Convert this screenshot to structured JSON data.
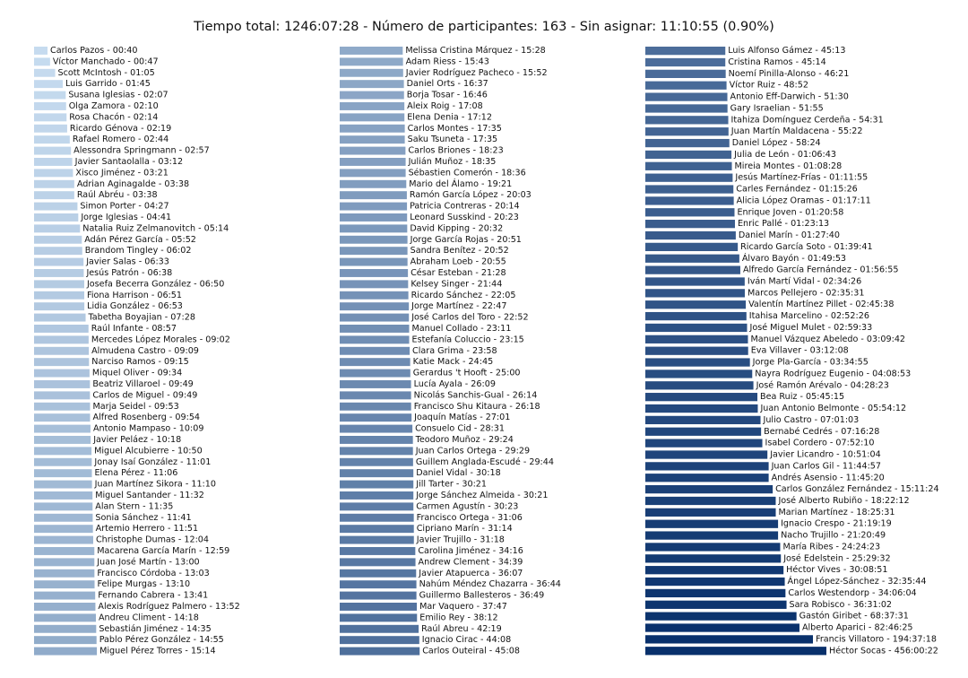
{
  "chart_data": {
    "type": "bar",
    "orientation": "horizontal",
    "title": "Tiempo total: 1246:07:28 - Número de participantes: 163 - Sin asignar: 11:10:55 (0.90%)",
    "value_unit": "seconds",
    "color_scale": [
      "#c6dbef",
      "#08306b"
    ],
    "columns": [
      {
        "name": "",
        "bars": [
          {
            "label": "Carlos Pazos - 00:40",
            "seconds": 40
          },
          {
            "label": "Víctor Manchado - 00:47",
            "seconds": 47
          },
          {
            "label": "Scott McIntosh - 01:05",
            "seconds": 65
          },
          {
            "label": "Luis Garrido - 01:45",
            "seconds": 105
          },
          {
            "label": "Susana Iglesias - 02:07",
            "seconds": 127
          },
          {
            "label": "Olga Zamora - 02:10",
            "seconds": 130
          },
          {
            "label": "Rosa Chacón - 02:14",
            "seconds": 134
          },
          {
            "label": "Ricardo Génova - 02:19",
            "seconds": 139
          },
          {
            "label": "Rafael Romero - 02:44",
            "seconds": 164
          },
          {
            "label": "Alessondra Springmann - 02:57",
            "seconds": 177
          },
          {
            "label": "Javier Santaolalla - 03:12",
            "seconds": 192
          },
          {
            "label": "Xisco Jiménez - 03:21",
            "seconds": 201
          },
          {
            "label": "Adrian Aginagalde - 03:38",
            "seconds": 218
          },
          {
            "label": "Raúl Abréu - 03:38",
            "seconds": 218
          },
          {
            "label": "Simon Porter - 04:27",
            "seconds": 267
          },
          {
            "label": "Jorge Iglesias - 04:41",
            "seconds": 281
          },
          {
            "label": "Natalia Ruiz Zelmanovitch - 05:14",
            "seconds": 314
          },
          {
            "label": "Adán Pérez García - 05:52",
            "seconds": 352
          },
          {
            "label": "Brandom Tingley - 06:02",
            "seconds": 362
          },
          {
            "label": "Javier Salas - 06:33",
            "seconds": 393
          },
          {
            "label": "Jesús Patrón - 06:38",
            "seconds": 398
          },
          {
            "label": "Josefa Becerra González - 06:50",
            "seconds": 410
          },
          {
            "label": "Fiona Harrison - 06:51",
            "seconds": 411
          },
          {
            "label": "Lidia González - 06:53",
            "seconds": 413
          },
          {
            "label": "Tabetha Boyajian - 07:28",
            "seconds": 448
          },
          {
            "label": "Raúl Infante - 08:57",
            "seconds": 537
          },
          {
            "label": "Mercedes López Morales - 09:02",
            "seconds": 542
          },
          {
            "label": "Almudena Castro - 09:09",
            "seconds": 549
          },
          {
            "label": "Narciso Ramos - 09:15",
            "seconds": 555
          },
          {
            "label": "Miquel Oliver - 09:34",
            "seconds": 574
          },
          {
            "label": "Beatriz Villaroel - 09:49",
            "seconds": 589
          },
          {
            "label": "Carlos de Miguel - 09:49",
            "seconds": 589
          },
          {
            "label": "Marja Seidel - 09:53",
            "seconds": 593
          },
          {
            "label": "Alfred Rosenberg - 09:54",
            "seconds": 594
          },
          {
            "label": "Antonio Mampaso - 10:09",
            "seconds": 609
          },
          {
            "label": "Javier Peláez - 10:18",
            "seconds": 618
          },
          {
            "label": "Miguel Alcubierre - 10:50",
            "seconds": 650
          },
          {
            "label": "Jonay Isaí González - 11:01",
            "seconds": 661
          },
          {
            "label": "Elena Pérez - 11:06",
            "seconds": 666
          },
          {
            "label": "Juan Martínez Sikora - 11:10",
            "seconds": 670
          },
          {
            "label": "Miguel Santander - 11:32",
            "seconds": 692
          },
          {
            "label": "Alan Stern - 11:35",
            "seconds": 695
          },
          {
            "label": "Sonia Sánchez - 11:41",
            "seconds": 701
          },
          {
            "label": "Artemio Herrero - 11:51",
            "seconds": 711
          },
          {
            "label": "Christophe Dumas - 12:04",
            "seconds": 724
          },
          {
            "label": "Macarena García Marín - 12:59",
            "seconds": 779
          },
          {
            "label": "Juan José Martín - 13:00",
            "seconds": 780
          },
          {
            "label": "Francisco Córdoba - 13:03",
            "seconds": 783
          },
          {
            "label": "Felipe Murgas - 13:10",
            "seconds": 790
          },
          {
            "label": "Fernando Cabrera - 13:41",
            "seconds": 821
          },
          {
            "label": "Alexis Rodríguez Palmero - 13:52",
            "seconds": 832
          },
          {
            "label": "Andreu Climent - 14:18",
            "seconds": 858
          },
          {
            "label": "Sebastián Jiménez - 14:35",
            "seconds": 875
          },
          {
            "label": "Pablo Pérez González - 14:55",
            "seconds": 895
          },
          {
            "label": "Miguel Pérez Torres - 15:14",
            "seconds": 914
          }
        ]
      },
      {
        "name": "",
        "bars": [
          {
            "label": "Melissa Cristina Márquez - 15:28",
            "seconds": 928
          },
          {
            "label": "Adam Riess - 15:43",
            "seconds": 943
          },
          {
            "label": "Javier Rodríguez Pacheco - 15:52",
            "seconds": 952
          },
          {
            "label": "Daniel Orts - 16:37",
            "seconds": 997
          },
          {
            "label": "Borja Tosar - 16:46",
            "seconds": 1006
          },
          {
            "label": "Aleix Roig - 17:08",
            "seconds": 1028
          },
          {
            "label": "Elena Denia - 17:12",
            "seconds": 1032
          },
          {
            "label": "Carlos Montes - 17:35",
            "seconds": 1055
          },
          {
            "label": "Saku Tsuneta - 17:35",
            "seconds": 1055
          },
          {
            "label": "Carlos Briones - 18:23",
            "seconds": 1103
          },
          {
            "label": "Julián Muñoz - 18:35",
            "seconds": 1115
          },
          {
            "label": "Sébastien Comerón - 18:36",
            "seconds": 1116
          },
          {
            "label": "Mario del Álamo - 19:21",
            "seconds": 1161
          },
          {
            "label": "Ramón García López - 20:03",
            "seconds": 1203
          },
          {
            "label": "Patricia Contreras - 20:14",
            "seconds": 1214
          },
          {
            "label": "Leonard Susskind - 20:23",
            "seconds": 1223
          },
          {
            "label": "David Kipping - 20:32",
            "seconds": 1232
          },
          {
            "label": "Jorge García Rojas - 20:51",
            "seconds": 1251
          },
          {
            "label": "Sandra Benítez - 20:52",
            "seconds": 1252
          },
          {
            "label": "Abraham Loeb - 20:55",
            "seconds": 1255
          },
          {
            "label": "César Esteban - 21:28",
            "seconds": 1288
          },
          {
            "label": "Kelsey Singer - 21:44",
            "seconds": 1304
          },
          {
            "label": "Ricardo Sánchez - 22:05",
            "seconds": 1325
          },
          {
            "label": "Jorge Martínez - 22:47",
            "seconds": 1367
          },
          {
            "label": "José Carlos del Toro - 22:52",
            "seconds": 1372
          },
          {
            "label": "Manuel Collado - 23:11",
            "seconds": 1391
          },
          {
            "label": "Estefanía Coluccio - 23:15",
            "seconds": 1395
          },
          {
            "label": "Clara Grima - 23:58",
            "seconds": 1438
          },
          {
            "label": "Katie Mack - 24:45",
            "seconds": 1485
          },
          {
            "label": "Gerardus 't Hooft - 25:00",
            "seconds": 1500
          },
          {
            "label": "Lucía Ayala - 26:09",
            "seconds": 1569
          },
          {
            "label": "Nicolás Sanchis-Gual - 26:14",
            "seconds": 1574
          },
          {
            "label": "Francisco Shu Kitaura - 26:18",
            "seconds": 1578
          },
          {
            "label": "Joaquín Matías - 27:01",
            "seconds": 1621
          },
          {
            "label": "Consuelo Cid - 28:31",
            "seconds": 1711
          },
          {
            "label": "Teodoro Muñoz - 29:24",
            "seconds": 1764
          },
          {
            "label": "Juan Carlos Ortega - 29:29",
            "seconds": 1769
          },
          {
            "label": "Guillem Anglada-Escudé - 29:44",
            "seconds": 1784
          },
          {
            "label": "Daniel Vidal - 30:18",
            "seconds": 1818
          },
          {
            "label": "Jill Tarter - 30:21",
            "seconds": 1821
          },
          {
            "label": "Jorge Sánchez Almeida - 30:21",
            "seconds": 1821
          },
          {
            "label": "Carmen Agustín - 30:23",
            "seconds": 1823
          },
          {
            "label": "Francisco Ortega - 31:06",
            "seconds": 1866
          },
          {
            "label": "Cipriano Marín - 31:14",
            "seconds": 1874
          },
          {
            "label": "Javier Trujillo - 31:18",
            "seconds": 1878
          },
          {
            "label": "Carolina Jiménez - 34:16",
            "seconds": 2056
          },
          {
            "label": "Andrew Clement - 34:39",
            "seconds": 2079
          },
          {
            "label": "Javier Atapuerca - 36:07",
            "seconds": 2167
          },
          {
            "label": "Nahúm Méndez Chazarra - 36:44",
            "seconds": 2204
          },
          {
            "label": "Guillermo Ballesteros - 36:49",
            "seconds": 2209
          },
          {
            "label": "Mar Vaquero - 37:47",
            "seconds": 2267
          },
          {
            "label": "Emilio Rey - 38:12",
            "seconds": 2292
          },
          {
            "label": "Raúl Abreu - 42:19",
            "seconds": 2539
          },
          {
            "label": "Ignacio Cirac - 44:08",
            "seconds": 2648
          },
          {
            "label": "Carlos Outeiral - 45:08",
            "seconds": 2708
          }
        ]
      },
      {
        "name": "",
        "bars": [
          {
            "label": "Luis Alfonso Gámez - 45:13",
            "seconds": 2713
          },
          {
            "label": "Cristina Ramos - 45:14",
            "seconds": 2714
          },
          {
            "label": "Noemí Pinilla-Alonso - 46:21",
            "seconds": 2781
          },
          {
            "label": "Víctor Ruiz - 48:52",
            "seconds": 2932
          },
          {
            "label": "Antonio Eff-Darwich - 51:30",
            "seconds": 3090
          },
          {
            "label": "Gary Israelian - 51:55",
            "seconds": 3115
          },
          {
            "label": "Itahiza Domínguez Cerdeña - 54:31",
            "seconds": 3271
          },
          {
            "label": "Juan Martín Maldacena - 55:22",
            "seconds": 3322
          },
          {
            "label": "Daniel López - 58:24",
            "seconds": 3504
          },
          {
            "label": "Julia de León - 01:06:43",
            "seconds": 4003
          },
          {
            "label": "Mireia Montes - 01:08:28",
            "seconds": 4108
          },
          {
            "label": "Jesús Martínez-Frías - 01:11:55",
            "seconds": 4315
          },
          {
            "label": "Carles Fernández - 01:15:26",
            "seconds": 4526
          },
          {
            "label": "Alicia López Oramas - 01:17:11",
            "seconds": 4631
          },
          {
            "label": "Enrique Joven - 01:20:58",
            "seconds": 4858
          },
          {
            "label": "Enric Pallé - 01:23:13",
            "seconds": 4993
          },
          {
            "label": "Daniel Marín - 01:27:40",
            "seconds": 5260
          },
          {
            "label": "Ricardo García Soto - 01:39:41",
            "seconds": 5981
          },
          {
            "label": "Álvaro Bayón - 01:49:53",
            "seconds": 6593
          },
          {
            "label": "Alfredo García Fernández - 01:56:55",
            "seconds": 7015
          },
          {
            "label": "Iván Martí Vidal - 02:34:26",
            "seconds": 9266
          },
          {
            "label": "Marcos Pellejero - 02:35:31",
            "seconds": 9331
          },
          {
            "label": "Valentín Martínez Pillet - 02:45:38",
            "seconds": 9938
          },
          {
            "label": "Itahisa Marcelino - 02:52:26",
            "seconds": 10346
          },
          {
            "label": "José Miguel Mulet - 02:59:33",
            "seconds": 10773
          },
          {
            "label": "Manuel Vázquez Abeledo - 03:09:42",
            "seconds": 11382
          },
          {
            "label": "Eva Villaver - 03:12:08",
            "seconds": 11528
          },
          {
            "label": "Jorge Pla-García - 03:34:55",
            "seconds": 12895
          },
          {
            "label": "Nayra Rodríguez Eugenio - 04:08:53",
            "seconds": 14933
          },
          {
            "label": "José Ramón Arévalo - 04:28:23",
            "seconds": 16103
          },
          {
            "label": "Bea Ruiz - 05:45:15",
            "seconds": 20715
          },
          {
            "label": "Juan Antonio Belmonte - 05:54:12",
            "seconds": 21252
          },
          {
            "label": "Julio Castro - 07:01:03",
            "seconds": 25263
          },
          {
            "label": "Bernabé Cedrés - 07:16:28",
            "seconds": 26188
          },
          {
            "label": "Isabel Cordero - 07:52:10",
            "seconds": 28330
          },
          {
            "label": "Javier Licandro - 10:51:04",
            "seconds": 39064
          },
          {
            "label": "Juan Carlos Gil - 11:44:57",
            "seconds": 42297
          },
          {
            "label": "Andrés Asensio - 11:45:20",
            "seconds": 42320
          },
          {
            "label": "Carlos González Fernández - 15:11:24",
            "seconds": 54684
          },
          {
            "label": "José Alberto Rubiño - 18:22:12",
            "seconds": 66132
          },
          {
            "label": "Marian Martínez - 18:25:31",
            "seconds": 66331
          },
          {
            "label": "Ignacio Crespo - 21:19:19",
            "seconds": 76759
          },
          {
            "label": "Nacho Trujillo - 21:20:49",
            "seconds": 76849
          },
          {
            "label": "María Ribes - 24:24:23",
            "seconds": 87863
          },
          {
            "label": "José Edelstein - 25:29:32",
            "seconds": 91772
          },
          {
            "label": "Héctor Vives - 30:08:51",
            "seconds": 108531
          },
          {
            "label": "Ángel López-Sánchez - 32:35:44",
            "seconds": 117344
          },
          {
            "label": "Carlos Westendorp - 34:06:04",
            "seconds": 122764
          },
          {
            "label": "Sara Robisco - 36:31:02",
            "seconds": 131462
          },
          {
            "label": "Gastón Giribet - 68:37:31",
            "seconds": 247051
          },
          {
            "label": "Alberto Aparici - 82:46:25",
            "seconds": 297985
          },
          {
            "label": "Francis Villatoro - 194:37:18",
            "seconds": 700638
          },
          {
            "label": "Héctor Socas - 456:00:22",
            "seconds": 1641622
          }
        ]
      }
    ]
  }
}
